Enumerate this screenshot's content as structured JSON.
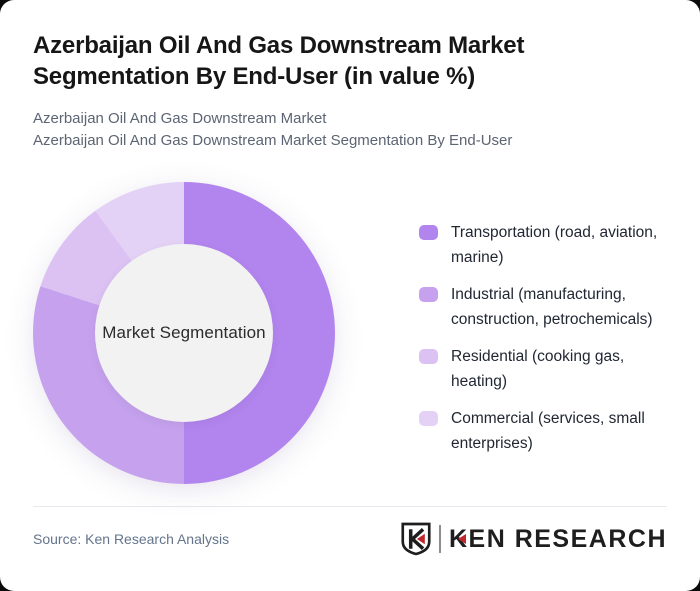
{
  "header": {
    "title": "Azerbaijan Oil And Gas Downstream Market Segmentation By End-User (in value %)",
    "subtitle_lines": [
      "Azerbaijan Oil And Gas Downstream Market",
      "Azerbaijan Oil And Gas Downstream Market Segmentation By End-User"
    ]
  },
  "chart_data": {
    "type": "pie",
    "variant": "donut",
    "title": "Azerbaijan Oil And Gas Downstream Market Segmentation By End-User (in value %)",
    "center_label": "Market Segmentation",
    "start_angle_deg": 0,
    "direction": "clockwise",
    "legend_position": "right",
    "value_labels_shown": false,
    "donut_hole_ratio": 0.59,
    "donut_hole_color": "#f2f2f3",
    "categories": [
      "Transportation (road, aviation, marine)",
      "Industrial (manufacturing, construction, petrochemicals)",
      "Residential (cooking gas, heating)",
      "Commercial (services, small enterprises)"
    ],
    "values": [
      50,
      30,
      10,
      10
    ],
    "colors": [
      "#b285ee",
      "#c6a2ee",
      "#dbc2f3",
      "#e4d2f6"
    ]
  },
  "footer": {
    "source": "Source: Ken Research Analysis",
    "logo": {
      "text": "KEN RESEARCH",
      "accent_color": "#c1272d"
    }
  }
}
